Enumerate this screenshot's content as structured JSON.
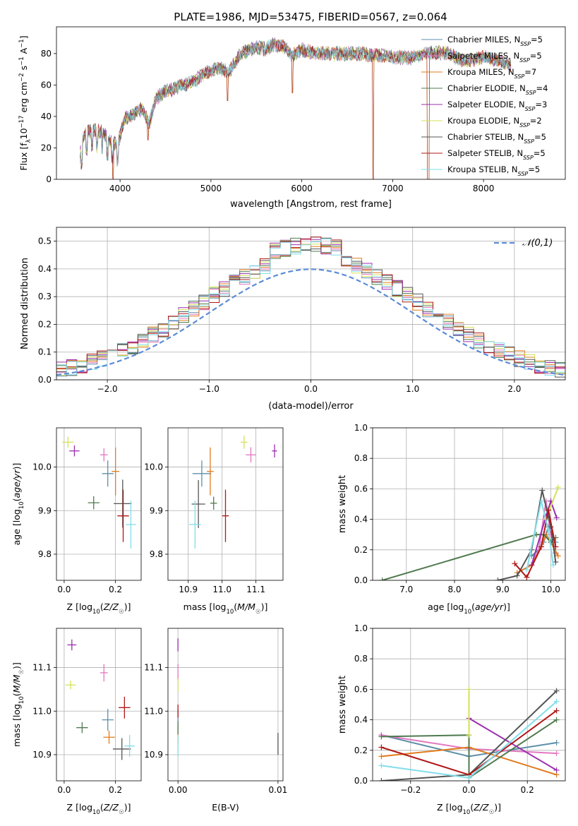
{
  "figure_title": "PLATE=1986, MJD=53475, FIBERID=0567, z=0.064",
  "models": [
    {
      "name": "Chabrier MILES",
      "nssp": "5",
      "color": "#5b8fa8"
    },
    {
      "name": "Salpeter MILES",
      "nssp": "5",
      "color": "#e377c2"
    },
    {
      "name": "Kroupa MILES",
      "nssp": "7",
      "color": "#e07b1c"
    },
    {
      "name": "Chabrier ELODIE",
      "nssp": "4",
      "color": "#4f7a4f"
    },
    {
      "name": "Salpeter ELODIE",
      "nssp": "3",
      "color": "#9b2fae"
    },
    {
      "name": "Kroupa ELODIE",
      "nssp": "2",
      "color": "#d4e157"
    },
    {
      "name": "Chabrier STELIB",
      "nssp": "5",
      "color": "#555555"
    },
    {
      "name": "Salpeter STELIB",
      "nssp": "5",
      "color": "#b01818"
    },
    {
      "name": "Kroupa STELIB",
      "nssp": "5",
      "color": "#80deea"
    }
  ],
  "chart_data": [
    {
      "id": "spectrum",
      "type": "line",
      "xlabel": "wavelength [Angstrom, rest frame]",
      "ylabel": "Flux [f_λ 10^-17 erg cm^-2 s^-1 A^-1]",
      "xlim": [
        3300,
        8900
      ],
      "ylim": [
        0,
        97
      ],
      "xticks": [
        4000,
        5000,
        6000,
        7000,
        8000
      ],
      "yticks": [
        0,
        20,
        40,
        60,
        80
      ],
      "grid": false,
      "legend": "top-right",
      "profile": [
        [
          3560,
          15
        ],
        [
          3600,
          28
        ],
        [
          3700,
          32
        ],
        [
          3800,
          30
        ],
        [
          3900,
          24
        ],
        [
          3970,
          22
        ],
        [
          4050,
          38
        ],
        [
          4150,
          42
        ],
        [
          4250,
          45
        ],
        [
          4320,
          35
        ],
        [
          4400,
          52
        ],
        [
          4500,
          56
        ],
        [
          4600,
          58
        ],
        [
          4700,
          60
        ],
        [
          4800,
          62
        ],
        [
          4900,
          66
        ],
        [
          5000,
          69
        ],
        [
          5100,
          71
        ],
        [
          5200,
          68
        ],
        [
          5300,
          78
        ],
        [
          5400,
          82
        ],
        [
          5500,
          84
        ],
        [
          5600,
          83
        ],
        [
          5700,
          86
        ],
        [
          5800,
          84
        ],
        [
          5900,
          79
        ],
        [
          6000,
          82
        ],
        [
          6200,
          80
        ],
        [
          6400,
          80
        ],
        [
          6600,
          80
        ],
        [
          6800,
          79
        ],
        [
          7000,
          78
        ],
        [
          7200,
          77
        ],
        [
          7400,
          81
        ],
        [
          7600,
          80
        ],
        [
          7800,
          75
        ],
        [
          8000,
          78
        ],
        [
          8200,
          75
        ],
        [
          8300,
          72
        ]
      ],
      "spikes": [
        [
          3920,
          3930,
          0
        ],
        [
          4300,
          4310,
          25
        ],
        [
          5180,
          5190,
          50
        ],
        [
          5890,
          5900,
          55
        ],
        [
          6780,
          6790,
          0
        ],
        [
          7380,
          7400,
          0
        ]
      ]
    },
    {
      "id": "residual-histogram",
      "type": "line",
      "xlabel": "(data-model)/error",
      "ylabel": "Normed distribution",
      "xlim": [
        -2.5,
        2.5
      ],
      "ylim": [
        0,
        0.55
      ],
      "xticks": [
        -2,
        -1,
        0,
        1,
        2
      ],
      "yticks": [
        0.0,
        0.1,
        0.2,
        0.3,
        0.4,
        0.5
      ],
      "grid": true,
      "legend": "top-right",
      "reference_label": "𝒩(0,1)",
      "bin_width": 0.1
    },
    {
      "id": "age-vs-z",
      "type": "scatter",
      "xlabel": "Z [log10(Z/Z☉)]",
      "ylabel": "age [log10(age/yr)]",
      "xlim": [
        -0.03,
        0.3
      ],
      "ylim": [
        9.74,
        10.09
      ],
      "xticks": [
        0.0,
        0.2
      ],
      "yticks": [
        9.8,
        9.9,
        10.0
      ],
      "grid": true,
      "points": [
        {
          "x": 0.17,
          "y": 9.985,
          "dx": 0.045,
          "dy": 0.06
        },
        {
          "x": 0.155,
          "y": 10.028,
          "dx": 0.03,
          "dy": 0.03
        },
        {
          "x": 0.2,
          "y": 9.99,
          "dx": 0.03,
          "dy": 0.11
        },
        {
          "x": 0.115,
          "y": 9.918,
          "dx": 0.045,
          "dy": 0.03
        },
        {
          "x": 0.04,
          "y": 10.037,
          "dx": 0.04,
          "dy": 0.025
        },
        {
          "x": 0.015,
          "y": 10.057,
          "dx": 0.045,
          "dy": 0.025
        },
        {
          "x": 0.228,
          "y": 9.916,
          "dx": 0.07,
          "dy": 0.11
        },
        {
          "x": 0.23,
          "y": 9.888,
          "dx": 0.045,
          "dy": 0.12
        },
        {
          "x": 0.26,
          "y": 9.868,
          "dx": 0.04,
          "dy": 0.11
        }
      ]
    },
    {
      "id": "age-vs-mass",
      "type": "scatter",
      "xlabel": "mass [log10(M/M☉)]",
      "ylabel": "",
      "xlim": [
        10.84,
        11.18
      ],
      "ylim": [
        9.74,
        10.09
      ],
      "xticks": [
        10.9,
        11.0,
        11.1
      ],
      "yticks": [
        9.8,
        9.9,
        10.0
      ],
      "grid": true,
      "points": [
        {
          "x": 10.94,
          "y": 9.985,
          "dx": 0.055,
          "dy": 0.06
        },
        {
          "x": 11.085,
          "y": 10.028,
          "dx": 0.03,
          "dy": 0.035
        },
        {
          "x": 10.965,
          "y": 9.99,
          "dx": 0.02,
          "dy": 0.11
        },
        {
          "x": 10.975,
          "y": 9.917,
          "dx": 0.02,
          "dy": 0.03
        },
        {
          "x": 11.155,
          "y": 10.037,
          "dx": 0.015,
          "dy": 0.03
        },
        {
          "x": 11.065,
          "y": 10.057,
          "dx": 0.02,
          "dy": 0.03
        },
        {
          "x": 10.93,
          "y": 9.915,
          "dx": 0.04,
          "dy": 0.11
        },
        {
          "x": 11.01,
          "y": 9.888,
          "dx": 0.02,
          "dy": 0.12
        },
        {
          "x": 10.92,
          "y": 9.868,
          "dx": 0.035,
          "dy": 0.11
        }
      ]
    },
    {
      "id": "mass-weight-vs-age",
      "type": "line",
      "xlabel": "age [log10(age/yr)]",
      "ylabel": "mass weight",
      "xlim": [
        6.3,
        10.3
      ],
      "ylim": [
        0,
        1
      ],
      "xticks": [
        7,
        8,
        9,
        10
      ],
      "yticks": [
        0.0,
        0.2,
        0.4,
        0.6,
        0.8,
        1.0
      ],
      "grid": true,
      "series": [
        {
          "points": [
            [
              9.6,
              0.16
            ],
            [
              9.75,
              0.2
            ],
            [
              9.85,
              0.25
            ],
            [
              9.95,
              0.35
            ],
            [
              10.1,
              0.25
            ]
          ]
        },
        {
          "points": [
            [
              9.6,
              0.1
            ],
            [
              9.75,
              0.2
            ],
            [
              9.9,
              0.52
            ],
            [
              10.0,
              0.3
            ],
            [
              10.1,
              0.18
            ]
          ]
        },
        {
          "points": [
            [
              9.3,
              0.05
            ],
            [
              9.6,
              0.1
            ],
            [
              9.8,
              0.22
            ],
            [
              9.9,
              0.3
            ],
            [
              10.0,
              0.25
            ],
            [
              10.15,
              0.16
            ]
          ]
        },
        {
          "points": [
            [
              6.5,
              0.0
            ],
            [
              9.7,
              0.3
            ],
            [
              9.85,
              0.3
            ],
            [
              10.0,
              0.25
            ],
            [
              10.1,
              0.28
            ]
          ]
        },
        {
          "points": [
            [
              9.6,
              0.1
            ],
            [
              9.9,
              0.42
            ],
            [
              10.0,
              0.52
            ],
            [
              10.12,
              0.41
            ]
          ]
        },
        {
          "points": [
            [
              9.9,
              0.4
            ],
            [
              10.15,
              0.61
            ]
          ]
        },
        {
          "points": [
            [
              8.9,
              0.0
            ],
            [
              9.3,
              0.03
            ],
            [
              9.6,
              0.2
            ],
            [
              9.82,
              0.59
            ],
            [
              10.0,
              0.35
            ],
            [
              10.1,
              0.12
            ]
          ]
        },
        {
          "points": [
            [
              9.25,
              0.11
            ],
            [
              9.5,
              0.02
            ],
            [
              9.8,
              0.22
            ],
            [
              9.95,
              0.46
            ],
            [
              10.1,
              0.22
            ]
          ]
        },
        {
          "points": [
            [
              9.5,
              0.07
            ],
            [
              9.8,
              0.52
            ],
            [
              9.95,
              0.33
            ],
            [
              10.05,
              0.1
            ]
          ]
        }
      ]
    },
    {
      "id": "mass-vs-z",
      "type": "scatter",
      "xlabel": "Z [log10(Z/Z☉)]",
      "ylabel": "mass [log10(M/M☉)]",
      "xlim": [
        -0.03,
        0.3
      ],
      "ylim": [
        10.84,
        11.19
      ],
      "xticks": [
        0.0,
        0.2
      ],
      "yticks": [
        10.9,
        11.0,
        11.1
      ],
      "grid": true,
      "points": [
        {
          "x": 0.17,
          "y": 10.98,
          "dx": 0.045,
          "dy": 0.05
        },
        {
          "x": 0.155,
          "y": 11.088,
          "dx": 0.03,
          "dy": 0.04
        },
        {
          "x": 0.175,
          "y": 10.94,
          "dx": 0.045,
          "dy": 0.03
        },
        {
          "x": 0.07,
          "y": 10.962,
          "dx": 0.045,
          "dy": 0.025
        },
        {
          "x": 0.03,
          "y": 11.152,
          "dx": 0.035,
          "dy": 0.025
        },
        {
          "x": 0.025,
          "y": 11.06,
          "dx": 0.04,
          "dy": 0.02
        },
        {
          "x": 0.225,
          "y": 10.913,
          "dx": 0.07,
          "dy": 0.05
        },
        {
          "x": 0.235,
          "y": 11.008,
          "dx": 0.045,
          "dy": 0.05
        },
        {
          "x": 0.255,
          "y": 10.92,
          "dx": 0.04,
          "dy": 0.05
        }
      ]
    },
    {
      "id": "mass-vs-ebv",
      "type": "scatter",
      "xlabel": "E(B-V)",
      "ylabel": "",
      "xlim": [
        -0.001,
        0.0105
      ],
      "ylim": [
        10.84,
        11.19
      ],
      "xticks": [
        0.0,
        0.01
      ],
      "tick_labels": [
        "0.00",
        "0.01"
      ],
      "yticks": [
        10.9,
        11.0,
        11.1
      ],
      "grid": true,
      "points": [
        {
          "x": 0.0,
          "y": 10.98,
          "dy": 0.05
        },
        {
          "x": 0.0,
          "y": 11.088,
          "dy": 0.04
        },
        {
          "x": 0.0,
          "y": 10.94,
          "dy": 0.03
        },
        {
          "x": 0.0,
          "y": 10.962,
          "dy": 0.03
        },
        {
          "x": 0.0,
          "y": 11.152,
          "dy": 0.03
        },
        {
          "x": 0.0,
          "y": 11.06,
          "dy": 0.03
        },
        {
          "x": 0.01,
          "y": 10.925,
          "dy": 0.05
        },
        {
          "x": 0.0,
          "y": 11.0,
          "dy": 0.03
        },
        {
          "x": 0.0,
          "y": 10.92,
          "dy": 0.05
        }
      ]
    },
    {
      "id": "mass-weight-vs-z",
      "type": "line",
      "xlabel": "Z [log10(Z/Z☉)]",
      "ylabel": "mass weight",
      "xlim": [
        -0.33,
        0.33
      ],
      "ylim": [
        0,
        1
      ],
      "xticks": [
        -0.2,
        0.0,
        0.2
      ],
      "yticks": [
        0.0,
        0.2,
        0.4,
        0.6,
        0.8,
        1.0
      ],
      "grid": true,
      "series": [
        {
          "points": [
            [
              -0.3,
              0.3
            ],
            [
              0.0,
              0.16
            ],
            [
              0.3,
              0.25
            ]
          ]
        },
        {
          "points": [
            [
              -0.3,
              0.3
            ],
            [
              0.0,
              0.21
            ],
            [
              0.3,
              0.18
            ]
          ]
        },
        {
          "points": [
            [
              -0.3,
              0.16
            ],
            [
              0.0,
              0.22
            ],
            [
              0.3,
              0.04
            ]
          ]
        },
        {
          "points": [
            [
              -0.3,
              0.29
            ],
            [
              0.0,
              0.3
            ],
            [
              0.0,
              0.02
            ],
            [
              0.3,
              0.4
            ]
          ]
        },
        {
          "points": [
            [
              0.0,
              0.41
            ],
            [
              0.3,
              0.07
            ]
          ]
        },
        {
          "points": [
            [
              0.0,
              0.3
            ],
            [
              0.0,
              0.6
            ]
          ]
        },
        {
          "points": [
            [
              -0.3,
              0.0
            ],
            [
              0.0,
              0.04
            ],
            [
              0.3,
              0.59
            ]
          ]
        },
        {
          "points": [
            [
              -0.3,
              0.22
            ],
            [
              0.0,
              0.04
            ],
            [
              0.3,
              0.46
            ]
          ]
        },
        {
          "points": [
            [
              -0.3,
              0.1
            ],
            [
              0.0,
              0.02
            ],
            [
              0.3,
              0.52
            ]
          ]
        }
      ]
    }
  ]
}
